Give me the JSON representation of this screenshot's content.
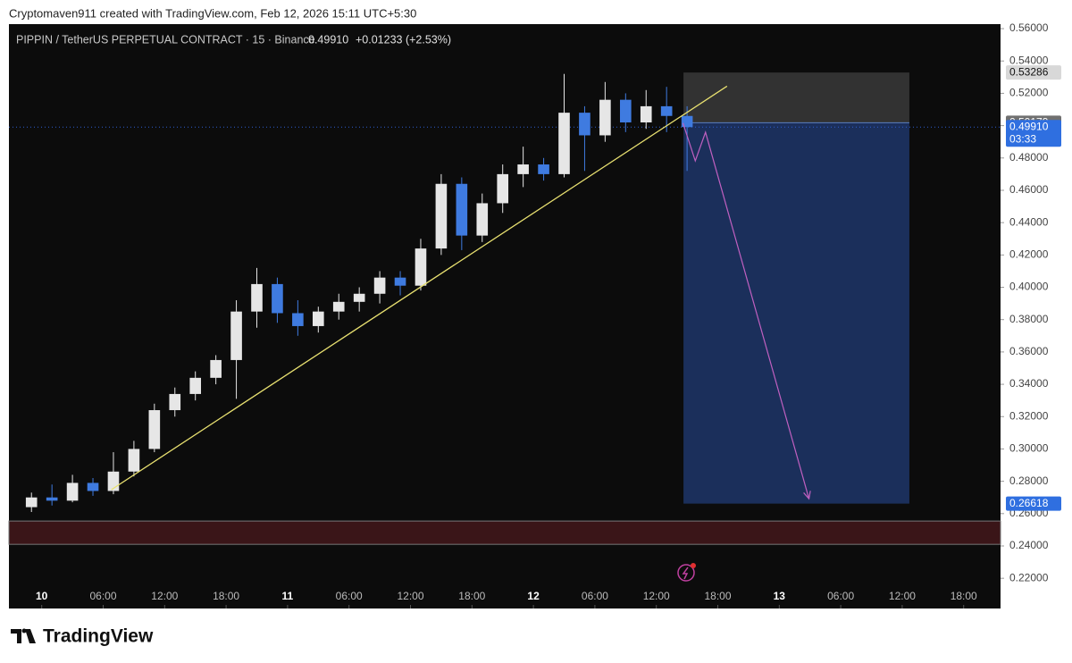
{
  "header": {
    "attribution": "Cryptomaven911 created with TradingView.com, Feb 12, 2026 15:11 UTC+5:30",
    "footer_brand": "TradingView"
  },
  "chart_data": {
    "type": "candlestick",
    "symbol": "PIPPIN / TetherUS PERPETUAL CONTRACT · 15 · Binance",
    "change": "+0.01233 (+2.53%)",
    "up_color": "#e6e6e6",
    "down_color": "#3f7be0",
    "x": [
      -2,
      0,
      2,
      4,
      6,
      8,
      10,
      12,
      14,
      16,
      18,
      20,
      22,
      24,
      26,
      28,
      30,
      32,
      34,
      36,
      38,
      40,
      42,
      44,
      46,
      48,
      50,
      52,
      54,
      56,
      58,
      60,
      62
    ],
    "open": [
      0.264,
      0.27,
      0.268,
      0.279,
      0.274,
      0.286,
      0.3,
      0.324,
      0.334,
      0.344,
      0.355,
      0.385,
      0.402,
      0.384,
      0.376,
      0.385,
      0.391,
      0.396,
      0.406,
      0.401,
      0.424,
      0.464,
      0.432,
      0.452,
      0.47,
      0.476,
      0.47,
      0.508,
      0.494,
      0.516,
      0.502,
      0.512,
      0.506
    ],
    "high": [
      0.273,
      0.278,
      0.284,
      0.282,
      0.298,
      0.305,
      0.328,
      0.338,
      0.348,
      0.358,
      0.392,
      0.412,
      0.406,
      0.392,
      0.388,
      0.396,
      0.4,
      0.41,
      0.41,
      0.43,
      0.47,
      0.468,
      0.458,
      0.476,
      0.487,
      0.48,
      0.532,
      0.512,
      0.527,
      0.52,
      0.522,
      0.524,
      0.512
    ],
    "low": [
      0.261,
      0.265,
      0.267,
      0.271,
      0.272,
      0.283,
      0.298,
      0.32,
      0.33,
      0.34,
      0.331,
      0.375,
      0.378,
      0.37,
      0.372,
      0.38,
      0.385,
      0.39,
      0.395,
      0.398,
      0.42,
      0.423,
      0.428,
      0.446,
      0.462,
      0.466,
      0.468,
      0.472,
      0.49,
      0.496,
      0.498,
      0.496,
      0.472
    ],
    "close": [
      0.27,
      0.268,
      0.279,
      0.274,
      0.286,
      0.3,
      0.324,
      0.334,
      0.344,
      0.355,
      0.385,
      0.402,
      0.384,
      0.376,
      0.385,
      0.391,
      0.396,
      0.406,
      0.401,
      0.424,
      0.464,
      0.432,
      0.452,
      0.47,
      0.476,
      0.47,
      0.508,
      0.494,
      0.516,
      0.502,
      0.512,
      0.506,
      0.4991
    ],
    "last_price": {
      "value": 0.4991,
      "label": "0.49910"
    },
    "countdown": "03:33",
    "xlim": [
      -3.2,
      93.6
    ],
    "ylim": [
      0.2013,
      0.5628
    ],
    "xticks": [
      {
        "value": 0,
        "label": "10"
      },
      {
        "value": 6,
        "label": "06:00"
      },
      {
        "value": 12,
        "label": "12:00"
      },
      {
        "value": 18,
        "label": "18:00"
      },
      {
        "value": 24,
        "label": "11"
      },
      {
        "value": 30,
        "label": "06:00"
      },
      {
        "value": 36,
        "label": "12:00"
      },
      {
        "value": 42,
        "label": "18:00"
      },
      {
        "value": 48,
        "label": "12"
      },
      {
        "value": 54,
        "label": "06:00"
      },
      {
        "value": 60,
        "label": "12:00"
      },
      {
        "value": 66,
        "label": "18:00"
      },
      {
        "value": 72,
        "label": "13"
      },
      {
        "value": 78,
        "label": "06:00"
      },
      {
        "value": 84,
        "label": "12:00"
      },
      {
        "value": 90,
        "label": "18:00"
      }
    ],
    "yticks": [
      {
        "value": 0.22,
        "label": "0.22000"
      },
      {
        "value": 0.24,
        "label": "0.24000"
      },
      {
        "value": 0.26,
        "label": "0.26000"
      },
      {
        "value": 0.28,
        "label": "0.28000"
      },
      {
        "value": 0.3,
        "label": "0.30000"
      },
      {
        "value": 0.32,
        "label": "0.32000"
      },
      {
        "value": 0.34,
        "label": "0.34000"
      },
      {
        "value": 0.36,
        "label": "0.36000"
      },
      {
        "value": 0.38,
        "label": "0.38000"
      },
      {
        "value": 0.4,
        "label": "0.40000"
      },
      {
        "value": 0.42,
        "label": "0.42000"
      },
      {
        "value": 0.44,
        "label": "0.44000"
      },
      {
        "value": 0.46,
        "label": "0.46000"
      },
      {
        "value": 0.48,
        "label": "0.48000"
      },
      {
        "value": 0.5,
        "label": "0.50000"
      },
      {
        "value": 0.52,
        "label": "0.52000"
      },
      {
        "value": 0.54,
        "label": "0.54000"
      },
      {
        "value": 0.56,
        "label": "0.56000"
      }
    ],
    "grid": false,
    "trendline": {
      "x": [
        6.8,
        66.9
      ],
      "y": [
        0.2748,
        0.5244
      ],
      "color": "#e8e070"
    },
    "position": {
      "x": [
        62.65,
        84.7
      ],
      "entry": 0.50179,
      "stop": 0.53286,
      "target": 0.26618
    },
    "arrow": {
      "x": [
        62.6,
        63.8,
        64.8,
        74.9
      ],
      "y": [
        0.5016,
        0.4782,
        0.4959,
        0.2692
      ],
      "color": "#c060c0"
    },
    "zone": {
      "x": [
        -3.2,
        93.6
      ],
      "y": [
        0.241,
        0.2554
      ],
      "color": "#3a1518"
    }
  }
}
